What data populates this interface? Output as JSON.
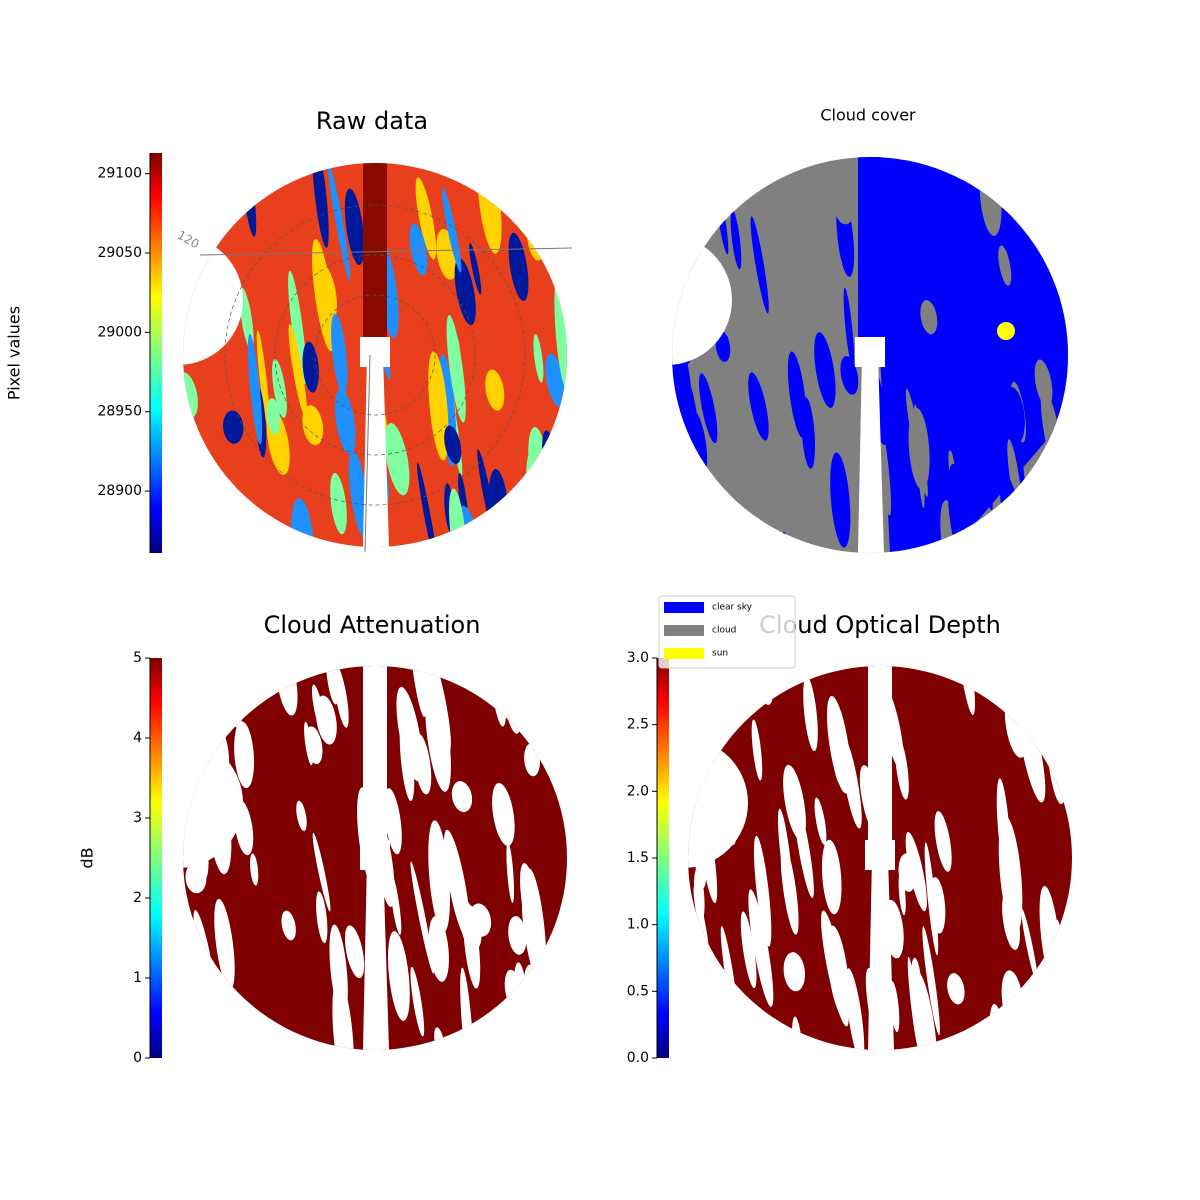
{
  "chart_data": [
    {
      "type": "image",
      "title": "Raw data",
      "annotation": "120",
      "colorbar": {
        "label": "Pixel values",
        "colormap": "jet",
        "lim": [
          28861,
          29113
        ],
        "ticks": [
          28900,
          28950,
          29000,
          29050,
          29100
        ]
      }
    },
    {
      "type": "image",
      "title": "Cloud cover",
      "legend": [
        {
          "name": "clear sky",
          "color": "#0000ff"
        },
        {
          "name": "cloud",
          "color": "#808080"
        },
        {
          "name": "sun",
          "color": "#ffff00"
        }
      ]
    },
    {
      "type": "image",
      "title": "Cloud Attenuation",
      "colorbar": {
        "label": "dB",
        "colormap": "jet",
        "lim": [
          0,
          5
        ],
        "ticks": [
          0,
          1,
          2,
          3,
          4,
          5
        ]
      }
    },
    {
      "type": "image",
      "title": "Cloud Optical Depth",
      "colorbar": {
        "colormap": "jet",
        "lim": [
          0,
          3
        ],
        "ticks": [
          {
            "value": 0,
            "label": "0.0"
          },
          {
            "value": 0.5,
            "label": "0.5"
          },
          {
            "value": 1,
            "label": "1.0"
          },
          {
            "value": 1.5,
            "label": "1.5"
          },
          {
            "value": 2,
            "label": "2.0"
          },
          {
            "value": 2.5,
            "label": "2.5"
          },
          {
            "value": 3,
            "label": "3.0"
          }
        ]
      }
    }
  ]
}
